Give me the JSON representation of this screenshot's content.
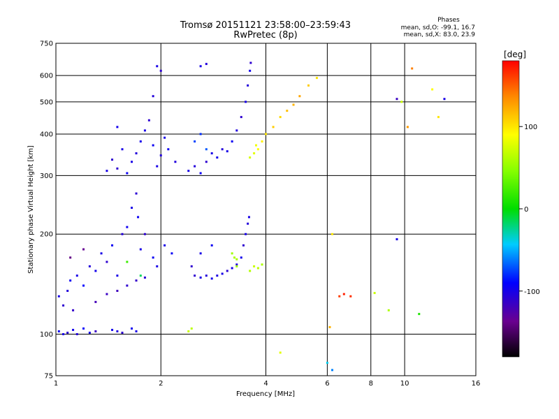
{
  "chart_data": {
    "type": "scatter",
    "title": "Tromsø 20151121 23:58:00–23:59:43",
    "subtitle": "RwPretec (8p)",
    "xlabel": "Frequency [MHz]",
    "ylabel": "Stationary phase Virtual Height [km]",
    "x_scale": "log",
    "y_scale": "log",
    "xlim": [
      1,
      16
    ],
    "ylim": [
      75,
      750
    ],
    "x_ticks": [
      1,
      2,
      4,
      6,
      8,
      10,
      16
    ],
    "y_ticks": [
      75,
      100,
      200,
      300,
      400,
      500,
      600,
      750
    ],
    "x_gridlines": [
      2,
      4,
      6,
      8,
      10
    ],
    "y_gridlines": [
      100,
      200,
      300,
      400,
      500,
      600
    ],
    "grid": true,
    "stats": {
      "heading": "Phases",
      "line_o": "mean, sd,O: -99.1, 16.7",
      "line_x": "mean, sd,X: 83.0, 23.9"
    },
    "colorbar": {
      "label": "[deg]",
      "range": [
        -180,
        180
      ],
      "ticks": [
        100,
        0,
        -100
      ],
      "colormap": "rainbow (black-purple-blue-cyan-green-yellow-orange-red)"
    },
    "series": [
      {
        "comment_free": true,
        "values": [
          [
            1.02,
            102,
            -95
          ],
          [
            1.05,
            100,
            -100
          ],
          [
            1.08,
            101,
            -110
          ],
          [
            1.12,
            103,
            -98
          ],
          [
            1.15,
            100,
            -105
          ],
          [
            1.2,
            104,
            -92
          ],
          [
            1.25,
            101,
            -100
          ],
          [
            1.3,
            102,
            -115
          ],
          [
            1.45,
            103,
            -98
          ],
          [
            1.5,
            102,
            -104
          ],
          [
            1.55,
            101,
            -110
          ],
          [
            1.65,
            104,
            -96
          ],
          [
            1.7,
            102,
            -100
          ]
        ]
      },
      {
        "values": [
          [
            1.02,
            130,
            -100
          ],
          [
            1.05,
            122,
            -110
          ],
          [
            1.08,
            135,
            -105
          ],
          [
            1.1,
            145,
            -95
          ],
          [
            1.12,
            118,
            -112
          ],
          [
            1.15,
            150,
            -100
          ],
          [
            1.2,
            140,
            -90
          ],
          [
            1.25,
            160,
            -105
          ],
          [
            1.3,
            155,
            -98
          ],
          [
            1.35,
            175,
            -100
          ],
          [
            1.4,
            165,
            -110
          ],
          [
            1.45,
            185,
            -95
          ],
          [
            1.5,
            150,
            -100
          ],
          [
            1.55,
            200,
            -105
          ],
          [
            1.6,
            210,
            -96
          ],
          [
            1.65,
            240,
            -100
          ],
          [
            1.7,
            265,
            -108
          ],
          [
            1.72,
            225,
            -95
          ],
          [
            1.75,
            180,
            -100
          ],
          [
            1.8,
            200,
            -110
          ],
          [
            1.9,
            170,
            -95
          ],
          [
            1.95,
            160,
            -100
          ],
          [
            2.05,
            185,
            -100
          ],
          [
            2.15,
            175,
            -94
          ],
          [
            1.3,
            125,
            -120
          ],
          [
            1.4,
            132,
            -115
          ],
          [
            1.5,
            135,
            -118
          ],
          [
            1.6,
            140,
            -110
          ],
          [
            1.7,
            145,
            -112
          ],
          [
            1.8,
            148,
            -108
          ],
          [
            1.1,
            170,
            -140
          ],
          [
            1.2,
            180,
            -135
          ],
          [
            1.6,
            165,
            20
          ],
          [
            1.75,
            150,
            -15
          ]
        ]
      },
      {
        "values": [
          [
            1.4,
            310,
            -100
          ],
          [
            1.5,
            315,
            -110
          ],
          [
            1.6,
            305,
            -95
          ],
          [
            1.65,
            330,
            -100
          ],
          [
            1.7,
            350,
            -105
          ],
          [
            1.75,
            380,
            -98
          ],
          [
            1.8,
            410,
            -100
          ],
          [
            1.85,
            440,
            -110
          ],
          [
            1.9,
            370,
            -95
          ],
          [
            1.95,
            320,
            -100
          ],
          [
            2.0,
            345,
            -105
          ],
          [
            2.05,
            390,
            -100
          ],
          [
            2.1,
            360,
            -96
          ],
          [
            2.2,
            330,
            -104
          ],
          [
            1.55,
            360,
            -100
          ],
          [
            1.45,
            335,
            -110
          ],
          [
            1.9,
            520,
            -105
          ],
          [
            1.95,
            640,
            -100
          ],
          [
            2.0,
            620,
            -110
          ],
          [
            1.5,
            420,
            -98
          ]
        ]
      },
      {
        "values": [
          [
            2.4,
            310,
            -100
          ],
          [
            2.5,
            320,
            -105
          ],
          [
            2.6,
            305,
            -95
          ],
          [
            2.7,
            330,
            -110
          ],
          [
            2.8,
            350,
            -100
          ],
          [
            2.9,
            340,
            -98
          ],
          [
            3.0,
            360,
            -105
          ],
          [
            3.1,
            355,
            -100
          ],
          [
            3.2,
            380,
            -95
          ],
          [
            3.3,
            410,
            -104
          ],
          [
            3.4,
            450,
            -110
          ],
          [
            3.5,
            500,
            -100
          ],
          [
            3.55,
            560,
            -105
          ],
          [
            3.6,
            620,
            -98
          ],
          [
            3.62,
            655,
            -110
          ],
          [
            2.5,
            380,
            -75
          ],
          [
            2.6,
            400,
            -80
          ],
          [
            2.7,
            360,
            -70
          ],
          [
            2.6,
            640,
            -100
          ],
          [
            2.7,
            650,
            -105
          ]
        ]
      },
      {
        "values": [
          [
            2.5,
            150,
            -110
          ],
          [
            2.6,
            148,
            -100
          ],
          [
            2.7,
            150,
            -105
          ],
          [
            2.8,
            147,
            -98
          ],
          [
            2.9,
            150,
            -102
          ],
          [
            3.0,
            152,
            -100
          ],
          [
            3.1,
            155,
            -108
          ],
          [
            3.2,
            158,
            -100
          ],
          [
            3.3,
            162,
            -104
          ],
          [
            3.4,
            170,
            -98
          ],
          [
            3.45,
            185,
            -110
          ],
          [
            3.5,
            200,
            -100
          ],
          [
            3.55,
            215,
            -105
          ],
          [
            3.58,
            225,
            -100
          ],
          [
            2.6,
            175,
            -100
          ],
          [
            2.8,
            185,
            -95
          ],
          [
            2.45,
            160,
            -110
          ]
        ]
      },
      {
        "values": [
          [
            3.2,
            175,
            55
          ],
          [
            3.25,
            170,
            60
          ],
          [
            3.3,
            168,
            58
          ],
          [
            3.7,
            160,
            70
          ],
          [
            3.8,
            158,
            65
          ],
          [
            3.9,
            162,
            60
          ],
          [
            3.6,
            155,
            62
          ],
          [
            3.3,
            160,
            55
          ],
          [
            2.4,
            102,
            70
          ],
          [
            2.45,
            104,
            65
          ]
        ]
      },
      {
        "values": [
          [
            3.7,
            350,
            80
          ],
          [
            3.8,
            360,
            90
          ],
          [
            3.9,
            380,
            95
          ],
          [
            4.0,
            400,
            100
          ],
          [
            4.2,
            420,
            110
          ],
          [
            4.4,
            450,
            105
          ],
          [
            4.6,
            470,
            115
          ],
          [
            4.8,
            490,
            120
          ],
          [
            5.0,
            520,
            125
          ],
          [
            5.3,
            560,
            110
          ],
          [
            5.6,
            590,
            100
          ],
          [
            3.6,
            340,
            75
          ],
          [
            3.75,
            370,
            85
          ]
        ]
      },
      {
        "values": [
          [
            6.5,
            130,
            160
          ],
          [
            6.7,
            132,
            170
          ],
          [
            7.0,
            130,
            165
          ],
          [
            6.1,
            105,
            120
          ],
          [
            6.2,
            200,
            100
          ],
          [
            9.5,
            510,
            -115
          ],
          [
            9.8,
            500,
            70
          ],
          [
            10.5,
            630,
            140
          ],
          [
            12.0,
            545,
            90
          ],
          [
            13.0,
            510,
            -100
          ],
          [
            12.5,
            450,
            100
          ],
          [
            10.2,
            420,
            130
          ],
          [
            8.2,
            133,
            70
          ],
          [
            9.0,
            118,
            60
          ],
          [
            11.0,
            115,
            10
          ],
          [
            9.5,
            193,
            -100
          ],
          [
            4.4,
            88,
            80
          ],
          [
            6.0,
            82,
            -40
          ],
          [
            6.2,
            78,
            -60
          ]
        ]
      }
    ]
  }
}
